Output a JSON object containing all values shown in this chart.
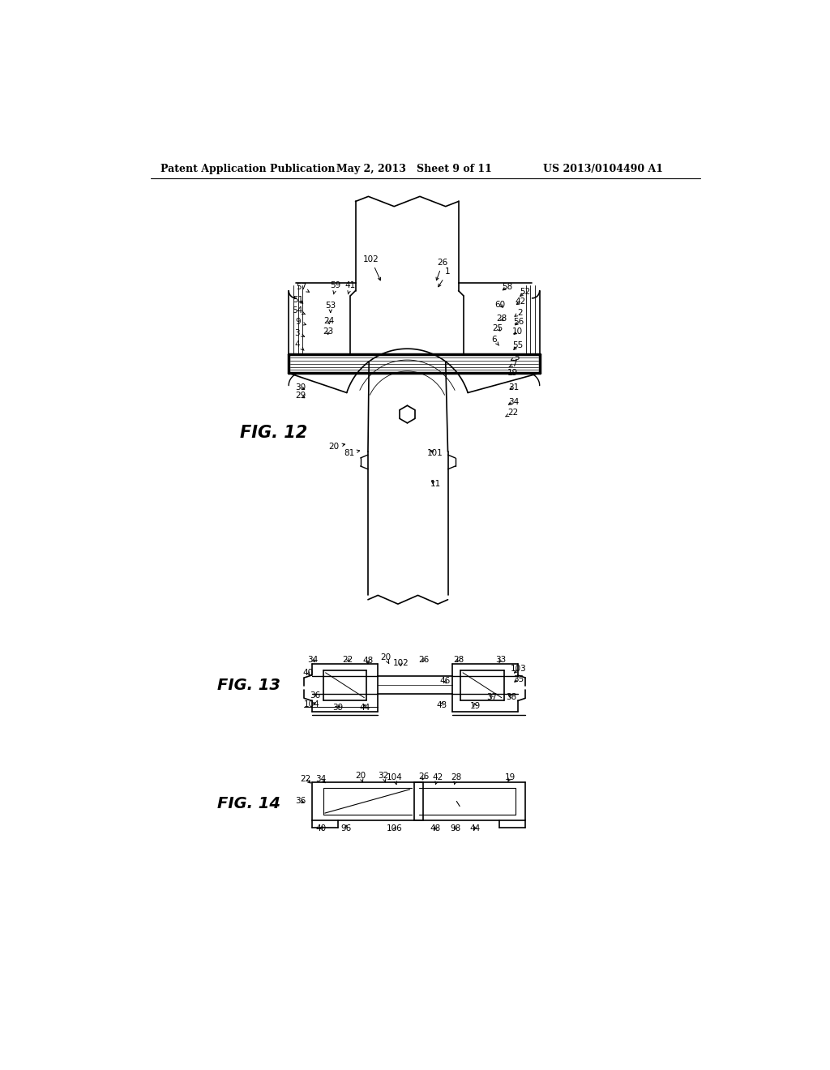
{
  "header_left": "Patent Application Publication",
  "header_mid": "May 2, 2013   Sheet 9 of 11",
  "header_right": "US 2013/0104490 A1",
  "fig12_label": "FIG. 12",
  "fig13_label": "FIG. 13",
  "fig14_label": "FIG. 14",
  "bg_color": "#ffffff",
  "line_color": "#000000"
}
